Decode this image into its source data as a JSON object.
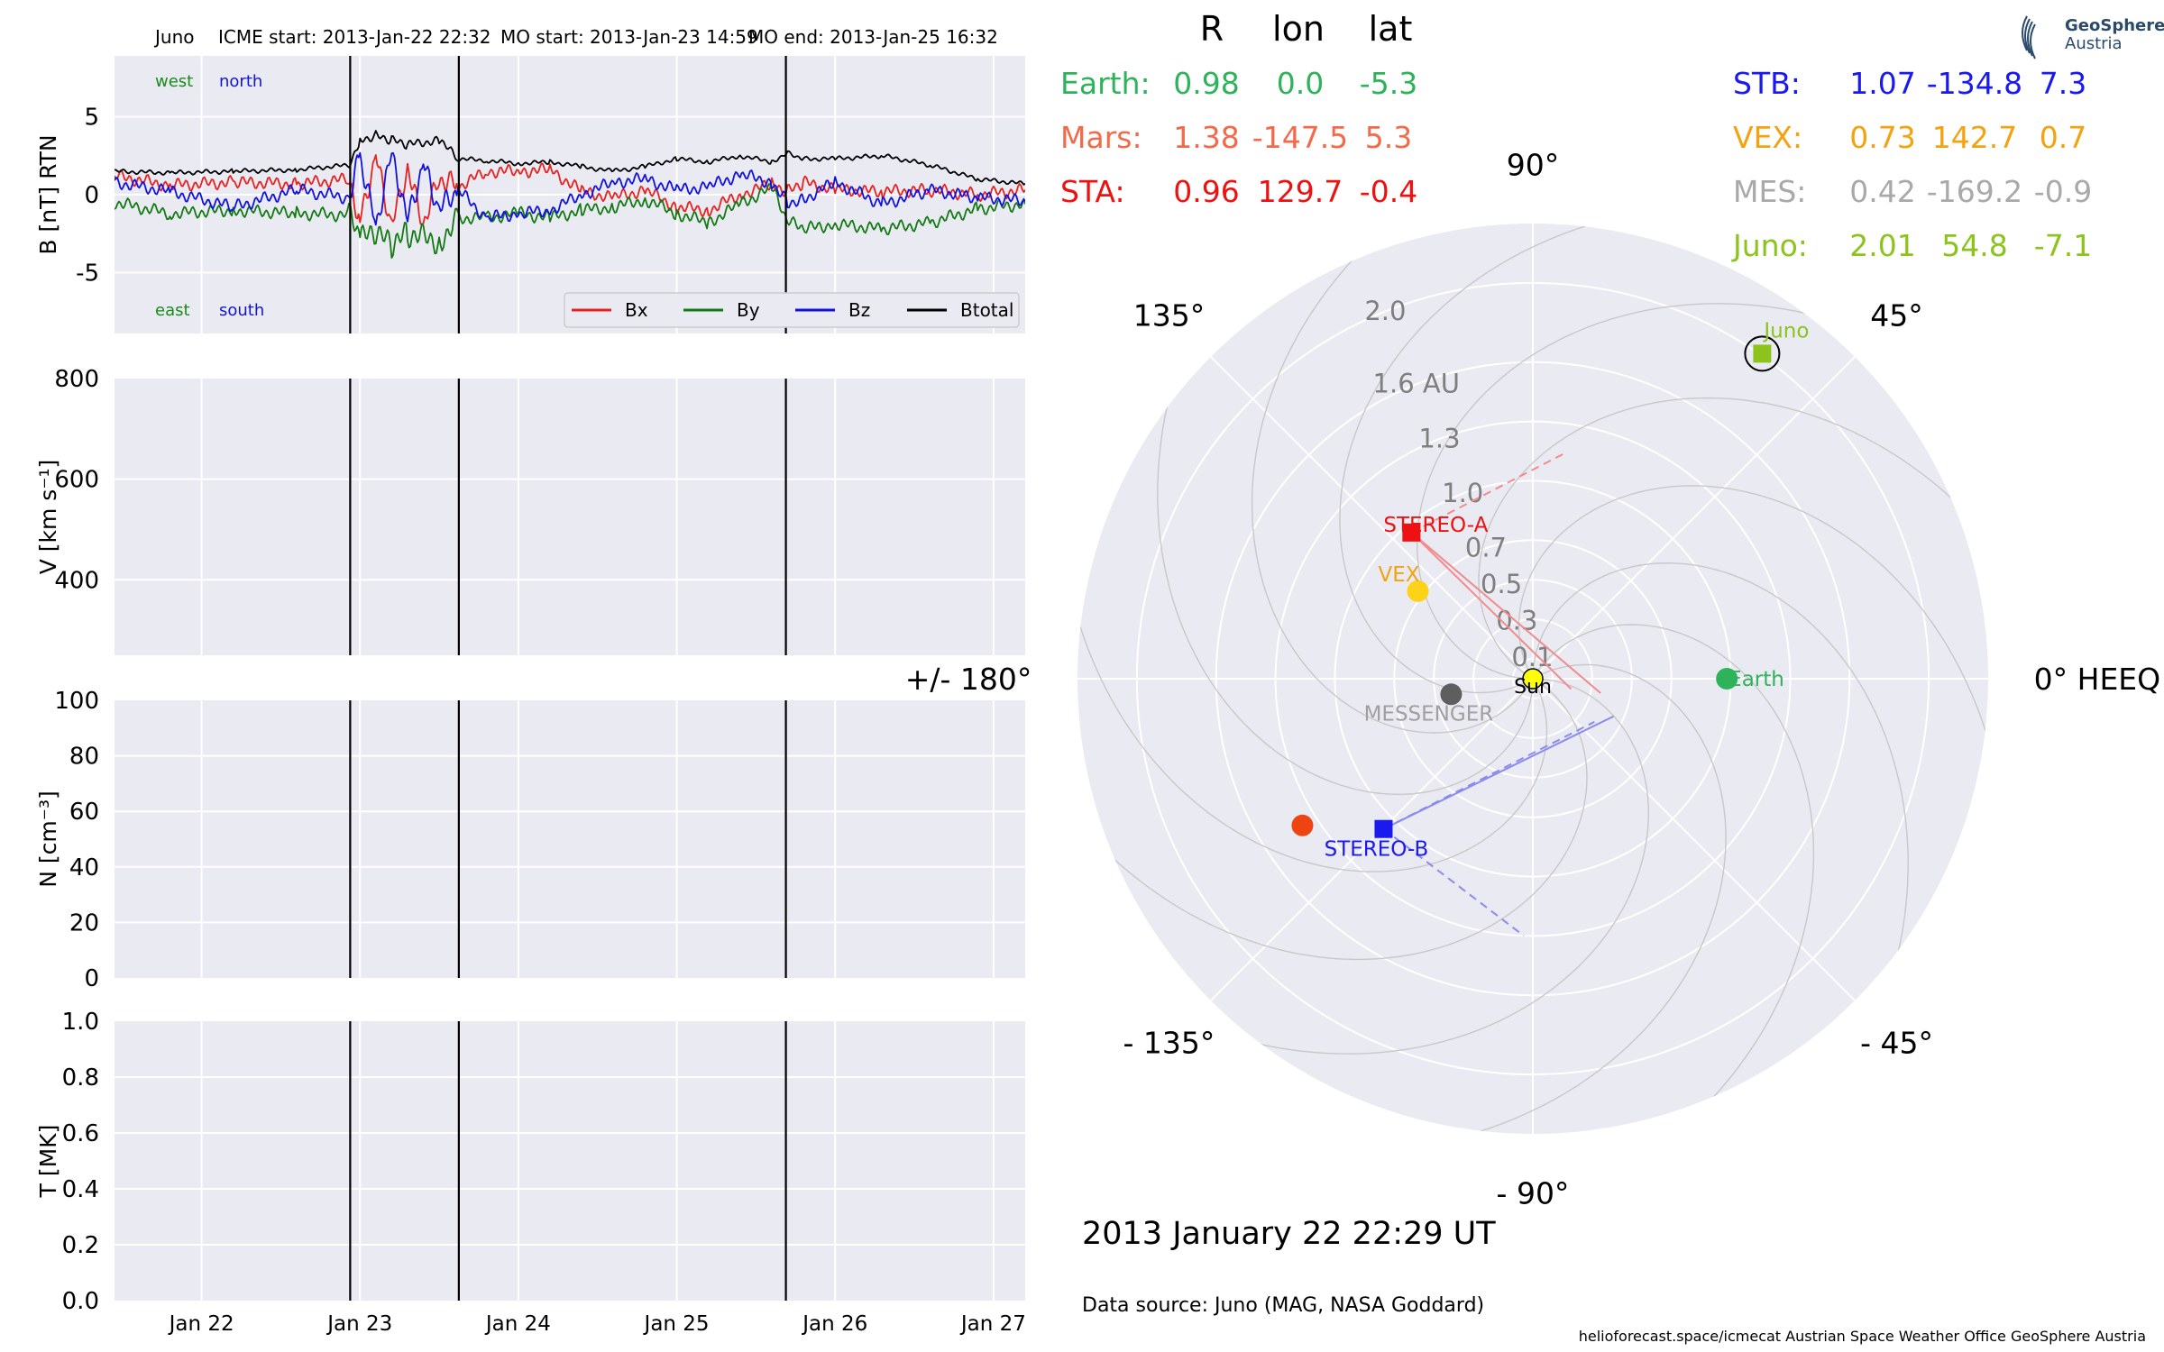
{
  "header": {
    "spacecraft": "Juno",
    "icme_start": "ICME start: 2013-Jan-22 22:32",
    "mo_start": "MO start: 2013-Jan-23 14:59",
    "mo_end": "MO end: 2013-Jan-25 16:32"
  },
  "time_axis": {
    "tick_labels": [
      "Jan 22",
      "Jan 23",
      "Jan 24",
      "Jan 25",
      "Jan 26",
      "Jan 27"
    ],
    "tick_days": [
      22,
      23,
      24,
      25,
      26,
      27
    ],
    "range_days": [
      21.45,
      27.2
    ]
  },
  "event_lines_days": [
    22.938,
    23.624,
    25.689
  ],
  "chart_data": [
    {
      "type": "line",
      "ylabel": "B [nT] RTN",
      "yticks": [
        5,
        0,
        -5
      ],
      "ylim": [
        -8.9,
        8.9
      ],
      "corner_labels": {
        "west": "west",
        "north": "north",
        "east": "east",
        "south": "south",
        "west_color": "#1a8a1a",
        "north_color": "#1515d0",
        "east_color": "#1a8a1a",
        "south_color": "#1515d0"
      },
      "legend_position": "lower-right",
      "legend": [
        {
          "name": "Bx",
          "color": "#e8221f"
        },
        {
          "name": "By",
          "color": "#137a13"
        },
        {
          "name": "Bz",
          "color": "#1212e0"
        },
        {
          "name": "Btotal",
          "color": "#000000"
        }
      ],
      "series": [
        {
          "name": "Bx",
          "color": "#e8221f",
          "points": [
            [
              21.45,
              1.2
            ],
            [
              21.8,
              0.6
            ],
            [
              22.2,
              0.8
            ],
            [
              22.6,
              0.7
            ],
            [
              22.93,
              1.0
            ],
            [
              23.0,
              -1.5
            ],
            [
              23.1,
              2.5
            ],
            [
              23.2,
              -2.0
            ],
            [
              23.3,
              1.5
            ],
            [
              23.4,
              -2.0
            ],
            [
              23.5,
              1.0
            ],
            [
              23.62,
              0.5
            ],
            [
              23.8,
              1.5
            ],
            [
              24.0,
              1.5
            ],
            [
              24.2,
              1.6
            ],
            [
              24.4,
              0.2
            ],
            [
              24.6,
              -0.2
            ],
            [
              24.8,
              0.3
            ],
            [
              25.0,
              -0.8
            ],
            [
              25.2,
              -1.0
            ],
            [
              25.4,
              0.0
            ],
            [
              25.6,
              0.7
            ],
            [
              25.7,
              0.2
            ],
            [
              25.8,
              0.8
            ],
            [
              26.0,
              0.3
            ],
            [
              26.3,
              0.2
            ],
            [
              26.6,
              0.3
            ],
            [
              26.9,
              0.0
            ],
            [
              27.2,
              0.3
            ]
          ]
        },
        {
          "name": "By",
          "color": "#137a13",
          "points": [
            [
              21.45,
              -0.5
            ],
            [
              21.8,
              -1.2
            ],
            [
              22.2,
              -1.0
            ],
            [
              22.6,
              -1.2
            ],
            [
              22.93,
              -1.3
            ],
            [
              23.0,
              -2.8
            ],
            [
              23.1,
              -2.5
            ],
            [
              23.2,
              -3.2
            ],
            [
              23.3,
              -2.5
            ],
            [
              23.5,
              -3.0
            ],
            [
              23.62,
              -1.5
            ],
            [
              23.8,
              -1.5
            ],
            [
              24.0,
              -1.2
            ],
            [
              24.2,
              -1.5
            ],
            [
              24.4,
              -1.0
            ],
            [
              24.6,
              -0.8
            ],
            [
              24.8,
              -0.3
            ],
            [
              25.0,
              -1.2
            ],
            [
              25.2,
              -1.8
            ],
            [
              25.4,
              -0.6
            ],
            [
              25.6,
              0.4
            ],
            [
              25.7,
              -1.7
            ],
            [
              25.8,
              -2.2
            ],
            [
              26.0,
              -1.9
            ],
            [
              26.3,
              -2.2
            ],
            [
              26.6,
              -1.8
            ],
            [
              26.9,
              -0.9
            ],
            [
              27.2,
              -0.6
            ]
          ]
        },
        {
          "name": "Bz",
          "color": "#1212e0",
          "points": [
            [
              21.45,
              0.8
            ],
            [
              21.8,
              0.2
            ],
            [
              22.2,
              -0.8
            ],
            [
              22.6,
              0.3
            ],
            [
              22.93,
              -0.2
            ],
            [
              23.0,
              2.5
            ],
            [
              23.1,
              -2.0
            ],
            [
              23.2,
              2.8
            ],
            [
              23.3,
              -1.5
            ],
            [
              23.4,
              2.0
            ],
            [
              23.5,
              -1.0
            ],
            [
              23.62,
              0.3
            ],
            [
              23.8,
              -1.5
            ],
            [
              24.0,
              -1.2
            ],
            [
              24.2,
              -1.0
            ],
            [
              24.4,
              0.0
            ],
            [
              24.6,
              0.8
            ],
            [
              24.8,
              1.0
            ],
            [
              25.0,
              0.3
            ],
            [
              25.2,
              0.5
            ],
            [
              25.4,
              1.3
            ],
            [
              25.6,
              0.8
            ],
            [
              25.7,
              -0.5
            ],
            [
              25.8,
              -0.3
            ],
            [
              26.0,
              0.8
            ],
            [
              26.3,
              -0.6
            ],
            [
              26.6,
              0.3
            ],
            [
              26.9,
              -0.2
            ],
            [
              27.2,
              -0.4
            ]
          ]
        },
        {
          "name": "Btotal",
          "color": "#000000",
          "points": [
            [
              21.45,
              1.5
            ],
            [
              21.8,
              1.4
            ],
            [
              22.2,
              1.5
            ],
            [
              22.6,
              1.6
            ],
            [
              22.93,
              1.9
            ],
            [
              23.0,
              3.5
            ],
            [
              23.1,
              3.8
            ],
            [
              23.2,
              3.5
            ],
            [
              23.3,
              3.2
            ],
            [
              23.5,
              3.5
            ],
            [
              23.62,
              2.3
            ],
            [
              23.8,
              2.2
            ],
            [
              24.0,
              2.0
            ],
            [
              24.2,
              2.1
            ],
            [
              24.4,
              1.8
            ],
            [
              24.6,
              1.5
            ],
            [
              24.8,
              1.8
            ],
            [
              25.0,
              2.3
            ],
            [
              25.2,
              2.1
            ],
            [
              25.4,
              2.5
            ],
            [
              25.6,
              2.1
            ],
            [
              25.7,
              2.7
            ],
            [
              25.8,
              2.3
            ],
            [
              26.0,
              2.3
            ],
            [
              26.3,
              2.5
            ],
            [
              26.6,
              1.9
            ],
            [
              26.9,
              1.0
            ],
            [
              27.2,
              0.7
            ]
          ]
        }
      ]
    },
    {
      "type": "line",
      "ylabel": "V [km s⁻¹]",
      "yticks": [
        800,
        600,
        400
      ],
      "ylim": [
        250,
        800
      ],
      "series": []
    },
    {
      "type": "line",
      "ylabel": "N [cm⁻³]",
      "yticks": [
        100,
        80,
        60,
        40,
        20,
        0
      ],
      "ylim": [
        0,
        100
      ],
      "series": []
    },
    {
      "type": "line",
      "ylabel": "T [MK]",
      "yticks": [
        "1.0",
        "0.8",
        "0.6",
        "0.4",
        "0.2",
        "0.0"
      ],
      "ylim": [
        0,
        1
      ],
      "series": []
    }
  ],
  "positions_table": {
    "headers": [
      "R",
      "lon",
      "lat"
    ],
    "left_rows": [
      {
        "name": "Earth:",
        "r": "0.98",
        "lon": "0.0",
        "lat": "-5.3",
        "color": "#2eb35a"
      },
      {
        "name": "Mars:",
        "r": "1.38",
        "lon": "-147.5",
        "lat": "5.3",
        "color": "#f26a4a"
      },
      {
        "name": "STA:",
        "r": "0.96",
        "lon": "129.7",
        "lat": "-0.4",
        "color": "#ee1111"
      }
    ],
    "right_rows": [
      {
        "name": "STB:",
        "r": "1.07",
        "lon": "-134.8",
        "lat": "7.3",
        "color": "#1a1aee"
      },
      {
        "name": "VEX:",
        "r": "0.73",
        "lon": "142.7",
        "lat": "0.7",
        "color": "#f2a30f"
      },
      {
        "name": "MES:",
        "r": "0.42",
        "lon": "-169.2",
        "lat": "-0.9",
        "color": "#a9a9a9"
      },
      {
        "name": "Juno:",
        "r": "2.01",
        "lon": "54.8",
        "lat": "-7.1",
        "color": "#8cc31c"
      }
    ]
  },
  "polar_plot": {
    "radial_tick_labels": [
      {
        "r": 0.1,
        "label": "0.1"
      },
      {
        "r": 0.3,
        "label": "0.3"
      },
      {
        "r": 0.5,
        "label": "0.5"
      },
      {
        "r": 0.7,
        "label": "0.7"
      },
      {
        "r": 1.0,
        "label": "1.0"
      },
      {
        "r": 1.3,
        "label": "1.3"
      },
      {
        "r": 1.6,
        "label": "1.6 AU"
      },
      {
        "r": 2.0,
        "label": "2.0"
      }
    ],
    "radial_max_au": 2.3,
    "angle_labels": [
      {
        "deg": 0,
        "label": "0° HEEQ"
      },
      {
        "deg": 45,
        "label": "45°"
      },
      {
        "deg": 90,
        "label": "90°"
      },
      {
        "deg": 135,
        "label": "135°"
      },
      {
        "deg": 180,
        "label": "+/- 180°"
      },
      {
        "deg": -135,
        "label": "- 135°"
      },
      {
        "deg": -90,
        "label": "- 90°"
      },
      {
        "deg": -45,
        "label": "- 45°"
      }
    ],
    "bodies": [
      {
        "name": "Sun",
        "label": "Sun",
        "r": 0.0,
        "lon": 0.0,
        "color": "#ffff00",
        "label_color": "#000000",
        "marker": "sun"
      },
      {
        "name": "Earth",
        "label": "Earth",
        "r": 0.98,
        "lon": 0.0,
        "color": "#2eb35a",
        "label_color": "#2eb35a",
        "marker": "circle"
      },
      {
        "name": "Mars",
        "label": "",
        "r": 1.38,
        "lon": -147.5,
        "color": "#ee4411",
        "label_color": "#ee4411",
        "marker": "circle"
      },
      {
        "name": "VEX",
        "label": "VEX",
        "r": 0.73,
        "lon": 142.7,
        "color": "#ffd21a",
        "label_color": "#f2a30f",
        "marker": "circle"
      },
      {
        "name": "MESSENGER",
        "label": "MESSENGER",
        "r": 0.42,
        "lon": -169.2,
        "color": "#5e5e5e",
        "label_color": "#a0a0a0",
        "marker": "circle"
      },
      {
        "name": "STEREO-A",
        "label": "STEREO-A",
        "r": 0.96,
        "lon": 129.7,
        "color": "#ee1111",
        "label_color": "#ee1111",
        "marker": "square"
      },
      {
        "name": "STEREO-B",
        "label": "STEREO-B",
        "r": 1.07,
        "lon": -134.8,
        "color": "#1a1aee",
        "label_color": "#1a1aee",
        "marker": "square"
      },
      {
        "name": "Juno",
        "label": "Juno",
        "r": 2.01,
        "lon": 54.8,
        "color": "#8cc31c",
        "label_color": "#8cc31c",
        "marker": "square",
        "ring": true
      }
    ],
    "heliospheric_imager_lines": [
      {
        "from": "STEREO-A",
        "to_r": 0.2,
        "to_lon": -15,
        "color": "#f28b8b",
        "dashed": false
      },
      {
        "from": "STEREO-A",
        "to_r": 0.35,
        "to_lon": -12,
        "color": "#f28b8b",
        "dashed": false
      },
      {
        "from": "STEREO-A",
        "to_r": 1.15,
        "to_lon": 82,
        "color": "#f28b8b",
        "dashed": true
      },
      {
        "from": "STEREO-B",
        "to_r": 0.45,
        "to_lon": -25,
        "color": "#8b8bee",
        "dashed": false
      },
      {
        "from": "STEREO-B",
        "to_r": 0.38,
        "to_lon": -35,
        "color": "#8b8bee",
        "dashed": true
      },
      {
        "from": "STEREO-B",
        "to_r": 1.3,
        "to_lon": -92,
        "color": "#8b8bee",
        "dashed": true
      }
    ]
  },
  "footer": {
    "timestamp": "2013 January 22  22:29 UT",
    "data_source": "Data source: Juno (MAG, NASA Goddard)",
    "credits": "helioforecast.space/icmecat   Austrian Space Weather Office   GeoSphere Austria"
  },
  "logo": {
    "line1": "GeoSphere",
    "line2": "Austria",
    "color": "#2a4a6a"
  },
  "colors": {
    "panel_bg": "#eaeaf2",
    "grid": "#ffffff",
    "event_line": "#000000",
    "polar_grid": "#c8c8c8"
  }
}
